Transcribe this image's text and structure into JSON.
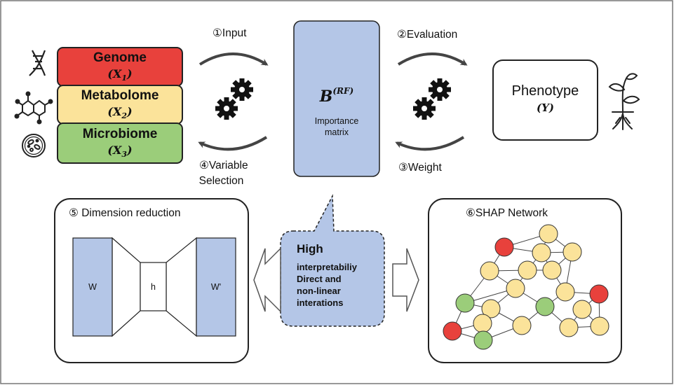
{
  "omics": [
    {
      "name": "Genome",
      "var": "X",
      "sub": "1",
      "color": "#e8413c",
      "icon": "dna-icon"
    },
    {
      "name": "Metabolome",
      "var": "X",
      "sub": "2",
      "color": "#fbe39a",
      "icon": "molecule-icon"
    },
    {
      "name": "Microbiome",
      "var": "X",
      "sub": "3",
      "color": "#9bcd7a",
      "icon": "microbe-dish-icon"
    }
  ],
  "steps": {
    "input": "①Input",
    "evaluation": "②Evaluation",
    "weight": "③Weight",
    "variable_line1": "④Variable",
    "variable_line2": "Selection",
    "dimension": "⑤ Dimension reduction",
    "shap": "⑥SHAP Network"
  },
  "matrix": {
    "symbol": "B",
    "superscript": "(RF)",
    "label_line1": "Importance",
    "label_line2": "matrix",
    "color": "#b4c6e7"
  },
  "phenotype": {
    "title": "Phenotype",
    "var": "(Y)",
    "icon": "plant-icon"
  },
  "callout": {
    "title": "High",
    "lines": [
      "interpretabiliy",
      "Direct and",
      "non-linear",
      "interations"
    ]
  },
  "autoencoder": {
    "left": "W",
    "middle": "h",
    "right": "W'"
  },
  "network": {
    "colors": {
      "red": "#e8413c",
      "yellow": "#fbe39a",
      "green": "#9bcd7a"
    }
  }
}
